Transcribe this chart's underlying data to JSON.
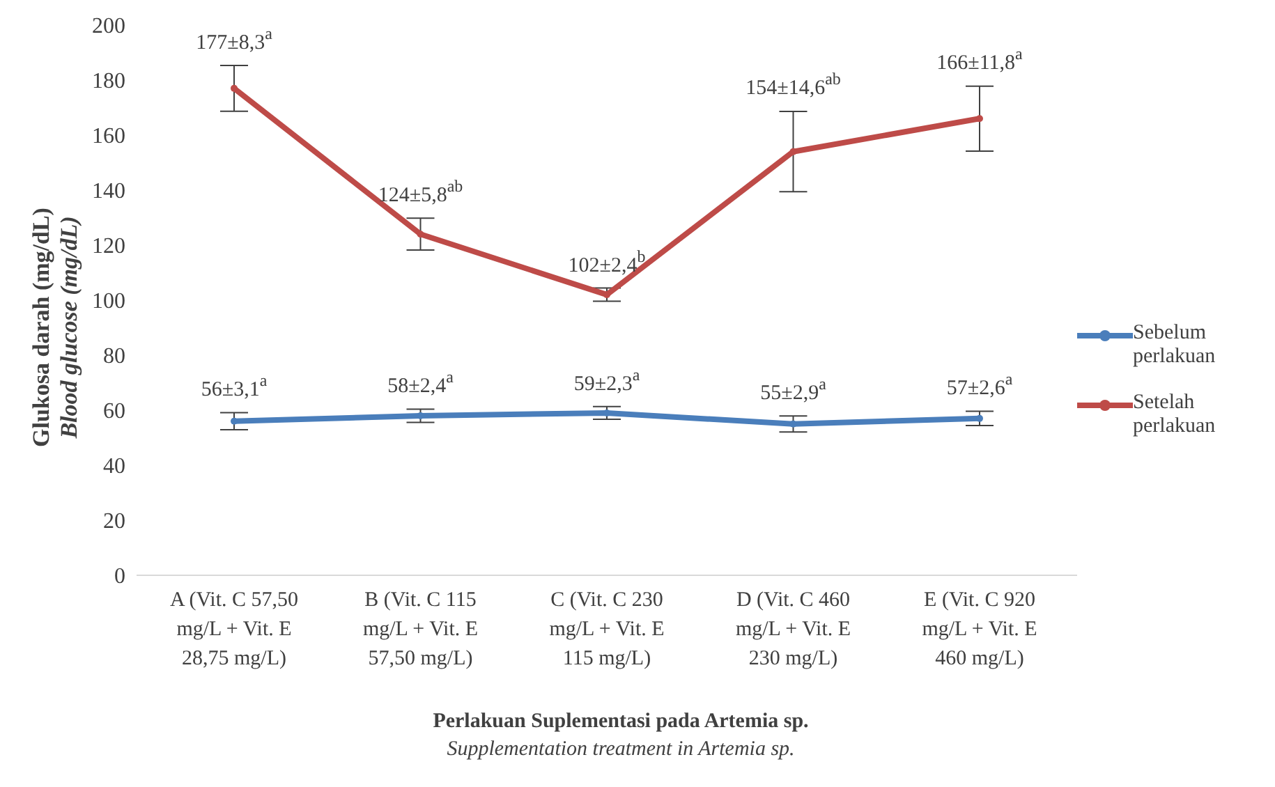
{
  "chart_data": {
    "type": "line",
    "xlabel": "Perlakuan Suplementasi pada Artemia sp.\nSupplementation treatment in Artemia sp.",
    "ylabel": "Glukosa darah (mg/dL)\nBlood glucose (mg/dL)",
    "categories": [
      "A (Vit. C 57,50\nmg/L + Vit. E\n28,75 mg/L)",
      "B (Vit. C 115\nmg/L + Vit. E\n57,50 mg/L)",
      "C (Vit. C 230\nmg/L + Vit. E\n115 mg/L)",
      "D (Vit. C 460\nmg/L + Vit. E\n230 mg/L)",
      "E (Vit. C 920\nmg/L + Vit. E\n460 mg/L)"
    ],
    "series": [
      {
        "name": "Sebelum perlakuan",
        "color": "#4a7ebb",
        "values": [
          56,
          58,
          59,
          55,
          57
        ],
        "errors": [
          3.1,
          2.4,
          2.3,
          2.9,
          2.6
        ],
        "value_labels": [
          "56±3,1$^{a}$",
          "58±2,4$^{a}$",
          "59±2,3$^{a}$",
          "55±2,9$^{a}$",
          "57±2,6$^{a}$"
        ]
      },
      {
        "name": "Setelah perlakuan",
        "color": "#be4b48",
        "values": [
          177,
          124,
          102,
          154,
          166
        ],
        "errors": [
          8.3,
          5.8,
          2.4,
          14.6,
          11.8
        ],
        "value_labels": [
          "177±8,3$^{a}$",
          "124±5,8$^{ab}$",
          "102±2,4$^{b}$",
          "154±14,6$^{ab}$",
          "166±11,8$^{a}$"
        ]
      }
    ],
    "ylim": [
      0,
      200
    ],
    "yticks": [
      0,
      20,
      40,
      60,
      80,
      100,
      120,
      140,
      160,
      180,
      200
    ],
    "grid": false,
    "legend": "right",
    "marker": "circle",
    "line_style": "solid"
  }
}
